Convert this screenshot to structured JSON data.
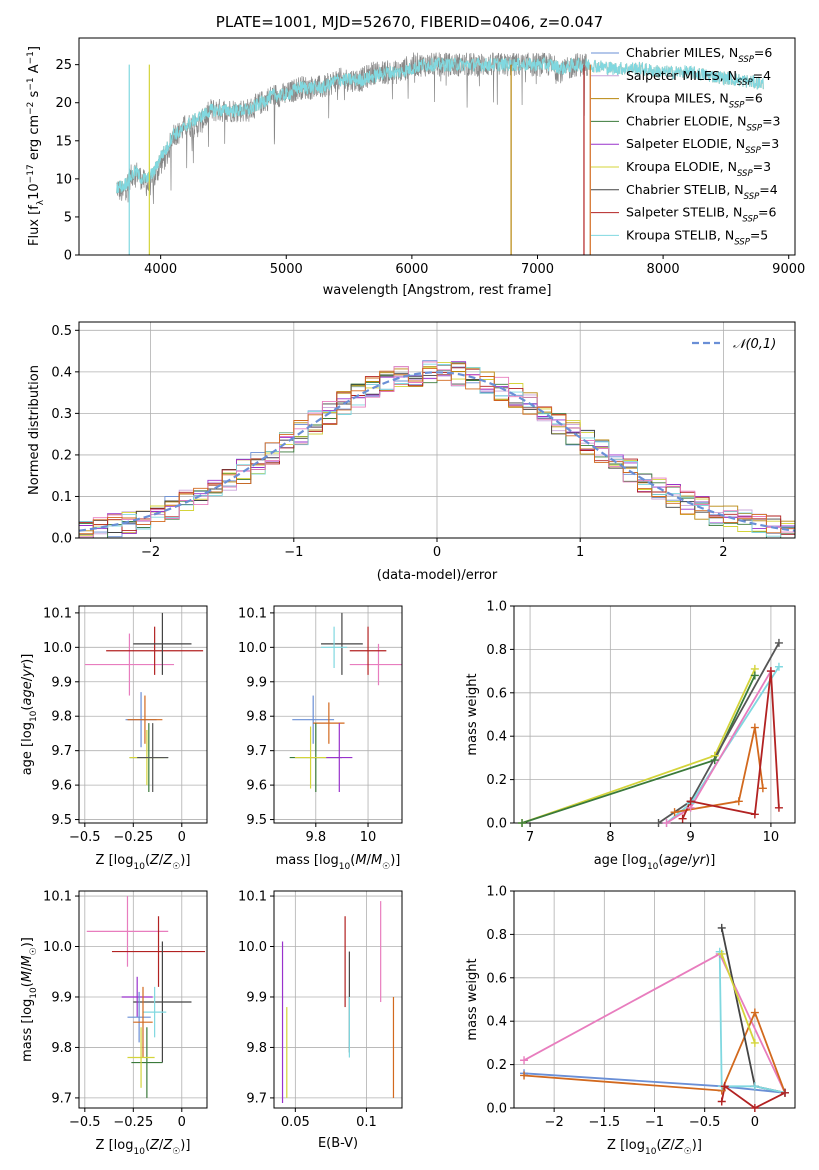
{
  "chart_data": [
    {
      "id": "spectrum",
      "type": "line",
      "title": "PLATE=1001, MJD=52670, FIBERID=0406, z=0.047",
      "xlabel": "wavelength [Angstrom, rest frame]",
      "ylabel": "Flux [f_λ10^-17 erg cm^-2 s^-1 A^-1]",
      "xlim": [
        3350,
        9050
      ],
      "ylim": [
        0,
        28.5
      ],
      "xticks": [
        4000,
        5000,
        6000,
        7000,
        8000,
        9000
      ],
      "yticks": [
        0,
        5,
        10,
        15,
        20,
        25
      ],
      "legend_position": "top-right",
      "legend": [
        {
          "name": "Chabrier MILES, N_SSP=6",
          "color": "#6a8fd6"
        },
        {
          "name": "Salpeter MILES, N_SSP=4",
          "color": "#c9a4d9"
        },
        {
          "name": "Kroupa MILES, N_SSP=6",
          "color": "#b8860b"
        },
        {
          "name": "Chabrier ELODIE, N_SSP=3",
          "color": "#3a7a3a"
        },
        {
          "name": "Salpeter ELODIE, N_SSP=3",
          "color": "#9932cc"
        },
        {
          "name": "Kroupa ELODIE, N_SSP=3",
          "color": "#d4d43a"
        },
        {
          "name": "Chabrier STELIB, N_SSP=4",
          "color": "#444444"
        },
        {
          "name": "Salpeter STELIB, N_SSP=6",
          "color": "#b22222"
        },
        {
          "name": "Kroupa STELIB, N_SSP=5",
          "color": "#80d8e0"
        }
      ],
      "series": [
        {
          "name": "data",
          "color": "#888888",
          "x": [
            3650,
            3700,
            3750,
            3800,
            3850,
            3900,
            3950,
            4000,
            4050,
            4100,
            4150,
            4200,
            4300,
            4400,
            4500,
            4600,
            4700,
            4800,
            4900,
            5000,
            5100,
            5200,
            5300,
            5400,
            5500,
            5600,
            5700,
            5800,
            5900,
            6000,
            6100,
            6200,
            6300,
            6400,
            6500,
            6600,
            6700,
            6800,
            6900,
            7000,
            7100,
            7200,
            7300,
            7400
          ],
          "y": [
            9,
            8,
            10,
            11,
            10,
            9,
            10,
            12,
            13,
            16,
            16,
            17,
            17,
            19,
            19,
            19,
            19,
            20,
            21,
            21,
            22,
            22,
            22,
            23,
            23,
            23,
            24,
            24,
            24,
            25,
            25,
            25,
            25,
            25,
            25,
            25,
            25,
            25,
            25,
            25,
            25,
            24,
            25,
            25
          ]
        },
        {
          "name": "model",
          "color": "#80d8e0",
          "x": [
            3650,
            3700,
            3750,
            3800,
            3850,
            3900,
            3950,
            4000,
            4050,
            4100,
            4150,
            4200,
            4300,
            4400,
            4500,
            4600,
            4700,
            4800,
            4900,
            5000,
            5100,
            5200,
            5300,
            5400,
            5500,
            5600,
            5700,
            5800,
            5900,
            6000,
            6100,
            6200,
            6300,
            6400,
            6500,
            6600,
            6700,
            6800,
            6900,
            7000,
            7100,
            7200,
            7300,
            7400,
            7600,
            7800,
            8000,
            8200,
            8400,
            8600,
            8800
          ],
          "y": [
            9,
            9,
            10,
            11,
            10,
            10,
            11,
            13,
            14,
            16,
            16,
            17,
            18,
            19,
            19,
            19,
            19,
            20,
            21,
            21,
            22,
            22,
            22,
            23,
            23,
            23,
            23.5,
            24,
            24,
            24.5,
            25,
            25,
            25,
            25,
            25,
            25,
            25,
            25,
            25,
            25,
            25,
            24.5,
            25,
            25,
            24.5,
            24.5,
            24,
            24,
            23.5,
            23,
            22.5
          ]
        }
      ]
    },
    {
      "id": "residuals",
      "type": "line",
      "xlabel": "(data-model)/error",
      "ylabel": "Normed distribution",
      "xlim": [
        -2.5,
        2.5
      ],
      "ylim": [
        0,
        0.52
      ],
      "xticks": [
        -2,
        -1,
        0,
        1,
        2
      ],
      "yticks": [
        0.0,
        0.1,
        0.2,
        0.3,
        0.4,
        0.5
      ],
      "legend": [
        {
          "name": "𝒩(0,1)",
          "color": "#6a8fd6"
        }
      ],
      "gaussian": {
        "mu": 0,
        "sigma": 1
      }
    },
    {
      "id": "age_vs_z",
      "type": "scatter",
      "xlabel": "Z [log10(Z/Z☉)]",
      "ylabel": "age [log10(age/yr)]",
      "xlim": [
        -0.53,
        0.13
      ],
      "ylim": [
        9.49,
        10.12
      ],
      "xticks": [
        -0.5,
        -0.25,
        0.0
      ],
      "yticks": [
        9.5,
        9.6,
        9.7,
        9.8,
        9.9,
        10.0,
        10.1
      ],
      "points": [
        {
          "x": -0.27,
          "y": 9.95,
          "xerr": 0.23,
          "yerr": 0.09,
          "color": "#e87dbe"
        },
        {
          "x": -0.14,
          "y": 9.99,
          "xerr": 0.25,
          "yerr": 0.07,
          "color": "#b22222"
        },
        {
          "x": -0.1,
          "y": 10.01,
          "xerr": 0.15,
          "yerr": 0.09,
          "color": "#444444"
        },
        {
          "x": -0.21,
          "y": 9.79,
          "xerr": 0.08,
          "yerr": 0.08,
          "color": "#6a8fd6"
        },
        {
          "x": -0.19,
          "y": 9.79,
          "xerr": 0.09,
          "yerr": 0.07,
          "color": "#d2691e"
        },
        {
          "x": -0.17,
          "y": 9.68,
          "xerr": 0.1,
          "yerr": 0.1,
          "color": "#3a7a3a"
        },
        {
          "x": -0.18,
          "y": 9.68,
          "xerr": 0.09,
          "yerr": 0.08,
          "color": "#d4d43a"
        },
        {
          "x": -0.15,
          "y": 9.68,
          "xerr": 0.08,
          "yerr": 0.1,
          "color": "#555555"
        }
      ]
    },
    {
      "id": "age_vs_mass",
      "type": "scatter",
      "xlabel": "mass [log10(M/M☉)]",
      "ylabel": "",
      "xlim": [
        9.64,
        10.13
      ],
      "ylim": [
        9.49,
        10.12
      ],
      "xticks": [
        9.8,
        10.0
      ],
      "yticks": [
        9.5,
        9.6,
        9.7,
        9.8,
        9.9,
        10.0,
        10.1
      ],
      "points": [
        {
          "x": 10.04,
          "y": 9.95,
          "xerr": 0.11,
          "yerr": 0.06,
          "color": "#e87dbe"
        },
        {
          "x": 10.0,
          "y": 9.99,
          "xerr": 0.07,
          "yerr": 0.07,
          "color": "#b22222"
        },
        {
          "x": 9.9,
          "y": 10.01,
          "xerr": 0.08,
          "yerr": 0.09,
          "color": "#444444"
        },
        {
          "x": 9.87,
          "y": 10.0,
          "xerr": 0.05,
          "yerr": 0.06,
          "color": "#80d8e0"
        },
        {
          "x": 9.79,
          "y": 9.79,
          "xerr": 0.08,
          "yerr": 0.07,
          "color": "#6a8fd6"
        },
        {
          "x": 9.85,
          "y": 9.78,
          "xerr": 0.06,
          "yerr": 0.06,
          "color": "#d2691e"
        },
        {
          "x": 9.8,
          "y": 9.68,
          "xerr": 0.1,
          "yerr": 0.1,
          "color": "#3a7a3a"
        },
        {
          "x": 9.89,
          "y": 9.68,
          "xerr": 0.05,
          "yerr": 0.1,
          "color": "#9932cc"
        },
        {
          "x": 9.78,
          "y": 9.68,
          "xerr": 0.06,
          "yerr": 0.09,
          "color": "#d4d43a"
        }
      ]
    },
    {
      "id": "mass_weight_vs_age",
      "type": "line",
      "xlabel": "age [log10(age/yr)]",
      "ylabel": "mass weight",
      "xlim": [
        6.8,
        10.3
      ],
      "ylim": [
        0.0,
        1.0
      ],
      "xticks": [
        7,
        8,
        9,
        10
      ],
      "yticks": [
        0.0,
        0.2,
        0.4,
        0.6,
        0.8,
        1.0
      ],
      "series": [
        {
          "name": "s1",
          "color": "#d4d43a",
          "x": [
            6.9,
            9.3,
            9.8
          ],
          "y": [
            0.0,
            0.31,
            0.71
          ]
        },
        {
          "name": "s2",
          "color": "#3a7a3a",
          "x": [
            6.9,
            9.3,
            9.8
          ],
          "y": [
            0.0,
            0.29,
            0.68
          ]
        },
        {
          "name": "s3",
          "color": "#555555",
          "x": [
            8.6,
            9.0,
            10.1
          ],
          "y": [
            0.0,
            0.1,
            0.83
          ]
        },
        {
          "name": "s4",
          "color": "#80d8e0",
          "x": [
            8.7,
            9.0,
            10.1
          ],
          "y": [
            0.0,
            0.09,
            0.72
          ]
        },
        {
          "name": "s5",
          "color": "#e87dbe",
          "x": [
            8.7,
            9.0,
            10.0
          ],
          "y": [
            0.0,
            0.07,
            0.7
          ]
        },
        {
          "name": "s6",
          "color": "#d2691e",
          "x": [
            8.8,
            9.6,
            9.8,
            9.9
          ],
          "y": [
            0.05,
            0.1,
            0.44,
            0.16
          ]
        },
        {
          "name": "s7",
          "color": "#b22222",
          "x": [
            8.9,
            9.0,
            9.8,
            10.0,
            10.1
          ],
          "y": [
            0.02,
            0.1,
            0.04,
            0.7,
            0.07
          ]
        }
      ]
    },
    {
      "id": "mass_vs_z",
      "type": "scatter",
      "xlabel": "Z [log10(Z/Z☉)]",
      "ylabel": "mass [log10(M/M☉)]",
      "xlim": [
        -0.53,
        0.13
      ],
      "ylim": [
        9.68,
        10.11
      ],
      "xticks": [
        -0.5,
        -0.25,
        0.0
      ],
      "yticks": [
        9.7,
        9.8,
        9.9,
        10.0,
        10.1
      ],
      "points": [
        {
          "x": -0.28,
          "y": 10.03,
          "xerr": 0.21,
          "yerr": 0.07,
          "color": "#e87dbe"
        },
        {
          "x": -0.12,
          "y": 9.99,
          "xerr": 0.24,
          "yerr": 0.07,
          "color": "#b22222"
        },
        {
          "x": -0.1,
          "y": 9.89,
          "xerr": 0.15,
          "yerr": 0.12,
          "color": "#444444"
        },
        {
          "x": -0.23,
          "y": 9.9,
          "xerr": 0.08,
          "yerr": 0.04,
          "color": "#9932cc"
        },
        {
          "x": -0.14,
          "y": 9.87,
          "xerr": 0.06,
          "yerr": 0.05,
          "color": "#80d8e0"
        },
        {
          "x": -0.22,
          "y": 9.86,
          "xerr": 0.06,
          "yerr": 0.05,
          "color": "#6a8fd6"
        },
        {
          "x": -0.2,
          "y": 9.85,
          "xerr": 0.05,
          "yerr": 0.07,
          "color": "#d2691e"
        },
        {
          "x": -0.18,
          "y": 9.77,
          "xerr": 0.08,
          "yerr": 0.07,
          "color": "#3a7a3a"
        },
        {
          "x": -0.21,
          "y": 9.78,
          "xerr": 0.07,
          "yerr": 0.06,
          "color": "#d4d43a"
        }
      ]
    },
    {
      "id": "mass_vs_ebv",
      "type": "scatter",
      "xlabel": "E(B-V)",
      "ylabel": "",
      "xlim": [
        0.035,
        0.125
      ],
      "ylim": [
        9.68,
        10.11
      ],
      "xticks": [
        0.05,
        0.1
      ],
      "yticks": [
        9.7,
        9.8,
        9.9,
        10.0,
        10.1
      ],
      "points": [
        {
          "x": 0.041,
          "y": 9.85,
          "xerr": 0,
          "yerr": 0.16,
          "color": "#9932cc"
        },
        {
          "x": 0.044,
          "y": 9.79,
          "xerr": 0,
          "yerr": 0.09,
          "color": "#d4d43a"
        },
        {
          "x": 0.085,
          "y": 9.97,
          "xerr": 0,
          "yerr": 0.09,
          "color": "#b22222"
        },
        {
          "x": 0.088,
          "y": 9.89,
          "xerr": 0,
          "yerr": 0.1,
          "color": "#444444"
        },
        {
          "x": 0.088,
          "y": 9.84,
          "xerr": 0,
          "yerr": 0.06,
          "color": "#80d8e0"
        },
        {
          "x": 0.11,
          "y": 9.99,
          "xerr": 0,
          "yerr": 0.1,
          "color": "#e87dbe"
        },
        {
          "x": 0.119,
          "y": 9.8,
          "xerr": 0,
          "yerr": 0.1,
          "color": "#d2691e"
        }
      ]
    },
    {
      "id": "mass_weight_vs_z",
      "type": "line",
      "xlabel": "Z [log10(Z/Z☉)]",
      "ylabel": "mass weight",
      "xlim": [
        -2.4,
        0.4
      ],
      "ylim": [
        0.0,
        1.0
      ],
      "xticks": [
        -2.0,
        -1.5,
        -1.0,
        -0.5,
        0.0
      ],
      "yticks": [
        0.0,
        0.2,
        0.4,
        0.6,
        0.8,
        1.0
      ],
      "series": [
        {
          "name": "s1",
          "color": "#e87dbe",
          "x": [
            -2.3,
            -0.35,
            0.3
          ],
          "y": [
            0.22,
            0.71,
            0.07
          ]
        },
        {
          "name": "s2",
          "color": "#6a8fd6",
          "x": [
            -2.3,
            -0.33,
            0.3
          ],
          "y": [
            0.16,
            0.1,
            0.07
          ]
        },
        {
          "name": "s3",
          "color": "#d2691e",
          "x": [
            -2.3,
            -0.33,
            0.0,
            0.3
          ],
          "y": [
            0.15,
            0.08,
            0.44,
            0.07
          ]
        },
        {
          "name": "s4",
          "color": "#444444",
          "x": [
            -0.33,
            0.0,
            0.3
          ],
          "y": [
            0.83,
            0.1,
            0.07
          ]
        },
        {
          "name": "s5",
          "color": "#80d8e0",
          "x": [
            -0.35,
            -0.33,
            0.0,
            0.3
          ],
          "y": [
            0.72,
            0.1,
            0.1,
            0.07
          ]
        },
        {
          "name": "s6",
          "color": "#d4d43a",
          "x": [
            -0.33,
            0.0
          ],
          "y": [
            0.71,
            0.3
          ]
        },
        {
          "name": "s7",
          "color": "#b22222",
          "x": [
            -0.33,
            -0.3,
            0.0,
            0.3
          ],
          "y": [
            0.03,
            0.1,
            0.0,
            0.07
          ]
        }
      ]
    }
  ]
}
